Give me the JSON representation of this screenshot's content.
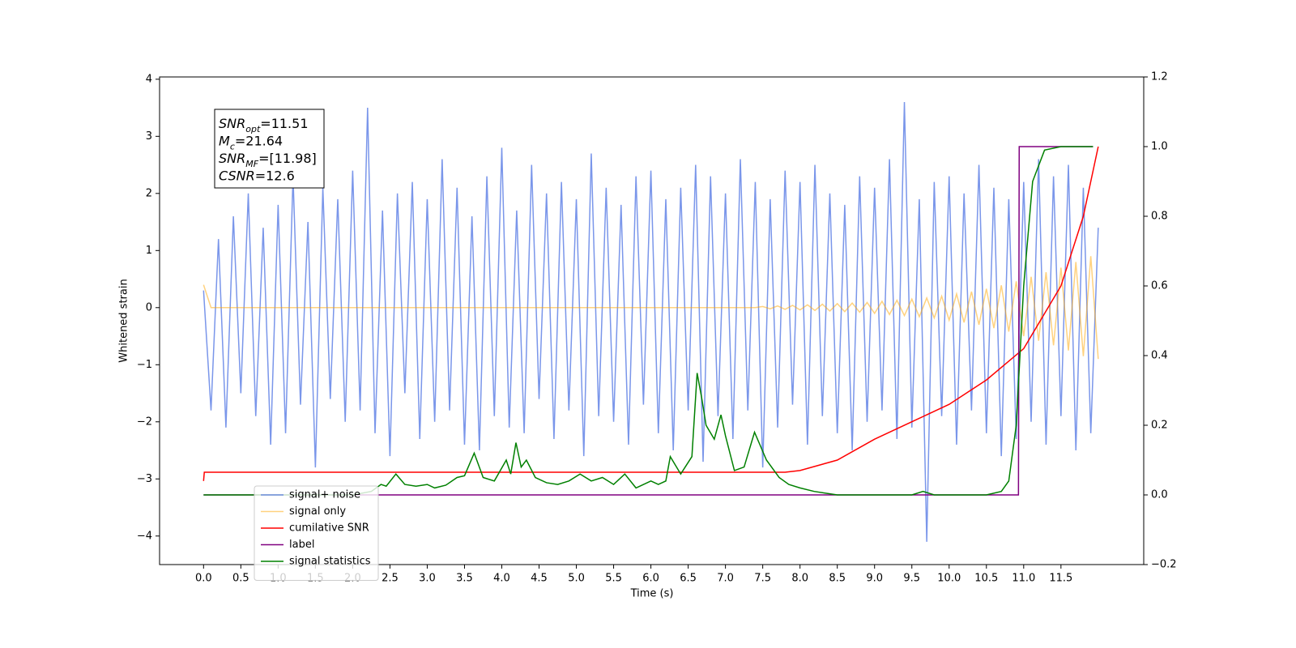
{
  "chart_data": {
    "type": "line",
    "xlabel": "Time (s)",
    "ylabel": "Whitened strain",
    "xlim": [
      -0.59,
      12.61
    ],
    "ylim": [
      -4.5,
      4.04
    ],
    "y2lim": [
      -0.2,
      1.2
    ],
    "xticks": [
      {
        "value": 0,
        "label": "0.0"
      },
      0.5,
      {
        "value": 1,
        "label": "1.0"
      },
      1.5,
      {
        "value": 2,
        "label": "2.0"
      },
      2.5,
      {
        "value": 3,
        "label": "3.0"
      },
      3.5,
      {
        "value": 4,
        "label": "4.0"
      },
      4.5,
      {
        "value": 5,
        "label": "5.0"
      },
      5.5,
      {
        "value": 6,
        "label": "6.0"
      },
      6.5,
      {
        "value": 7,
        "label": "7.0"
      },
      7.5,
      {
        "value": 8,
        "label": "8.0"
      },
      8.5,
      {
        "value": 9,
        "label": "9.0"
      },
      9.5,
      {
        "value": 10,
        "label": "10.0"
      },
      10.5,
      {
        "value": 11,
        "label": "11.0"
      },
      11.5
    ],
    "yticks": [
      {
        "value": -4,
        "label": "−4"
      },
      {
        "value": -3,
        "label": "−3"
      },
      {
        "value": -2,
        "label": "−2"
      },
      {
        "value": -1,
        "label": "−1"
      },
      0,
      1,
      2,
      3,
      4
    ],
    "y2ticks": [
      {
        "value": -0.2,
        "label": "−0.2"
      },
      {
        "value": 0,
        "label": "0.0"
      },
      0.2,
      0.4,
      0.6,
      0.8,
      {
        "value": 1,
        "label": "1.0"
      },
      1.2
    ],
    "legend": "lower left",
    "annotation": [
      {
        "main": "SNR",
        "sub": "opt",
        "rest": "=11.51"
      },
      {
        "main": "M",
        "sub": "c",
        "rest": "=21.64"
      },
      {
        "main": "SNR",
        "sub": "MF",
        "rest": "=[11.98]"
      },
      {
        "main": "CSNR",
        "sub": null,
        "rest": "=12.6"
      }
    ],
    "x": [
      0,
      0.1,
      0.2,
      0.3,
      0.4,
      0.5,
      0.6,
      0.7,
      0.8,
      0.9,
      1.0,
      1.1,
      1.2,
      1.3,
      1.4,
      1.5,
      1.6,
      1.7,
      1.8,
      1.9,
      2.0,
      2.1,
      2.2,
      2.3,
      2.4,
      2.5,
      2.6,
      2.7,
      2.8,
      2.9,
      3.0,
      3.1,
      3.2,
      3.3,
      3.4,
      3.5,
      3.6,
      3.7,
      3.8,
      3.9,
      4.0,
      4.1,
      4.2,
      4.3,
      4.4,
      4.5,
      4.6,
      4.7,
      4.8,
      4.9,
      5.0,
      5.1,
      5.2,
      5.3,
      5.4,
      5.5,
      5.6,
      5.7,
      5.8,
      5.9,
      6.0,
      6.1,
      6.2,
      6.3,
      6.4,
      6.5,
      6.6,
      6.7,
      6.8,
      6.9,
      7.0,
      7.1,
      7.2,
      7.3,
      7.4,
      7.5,
      7.6,
      7.7,
      7.8,
      7.9,
      8.0,
      8.1,
      8.2,
      8.3,
      8.4,
      8.5,
      8.6,
      8.7,
      8.8,
      8.9,
      9.0,
      9.1,
      9.2,
      9.3,
      9.4,
      9.5,
      9.6,
      9.7,
      9.8,
      9.9,
      10.0,
      10.1,
      10.2,
      10.3,
      10.4,
      10.5,
      10.6,
      10.7,
      10.8,
      10.9,
      11.0,
      11.1,
      11.2,
      11.3,
      11.4,
      11.5,
      11.6,
      11.7,
      11.8,
      11.9,
      12.0
    ],
    "series": [
      {
        "name": "signal+ noise",
        "color": "#4169e1",
        "alpha": 0.7,
        "values": [
          0.3,
          -1.8,
          1.2,
          -2.1,
          1.6,
          -1.5,
          2.0,
          -1.9,
          1.4,
          -2.4,
          1.8,
          -2.2,
          2.3,
          -1.7,
          1.5,
          -2.8,
          2.1,
          -1.6,
          1.9,
          -2.0,
          2.4,
          -1.8,
          3.5,
          -2.2,
          1.7,
          -2.6,
          2.0,
          -1.5,
          2.2,
          -2.3,
          1.9,
          -2.0,
          2.6,
          -1.8,
          2.1,
          -2.4,
          1.6,
          -2.5,
          2.3,
          -1.9,
          2.8,
          -2.1,
          1.7,
          -2.2,
          2.5,
          -1.6,
          2.0,
          -2.3,
          2.2,
          -1.8,
          1.9,
          -2.6,
          2.7,
          -1.9,
          2.1,
          -2.0,
          1.8,
          -2.4,
          2.3,
          -1.7,
          2.4,
          -2.2,
          1.9,
          -2.5,
          2.1,
          -1.8,
          2.5,
          -2.7,
          2.3,
          -1.9,
          2.0,
          -2.3,
          2.6,
          -1.8,
          2.2,
          -2.8,
          1.9,
          -2.1,
          2.4,
          -1.7,
          2.2,
          -2.4,
          2.5,
          -1.9,
          2.0,
          -2.2,
          1.8,
          -2.5,
          2.3,
          -2.0,
          2.1,
          -1.8,
          2.6,
          -2.3,
          3.6,
          -2.1,
          1.9,
          -4.1,
          2.2,
          -1.9,
          2.3,
          -2.4,
          2.0,
          -1.8,
          2.5,
          -2.2,
          2.1,
          -2.6,
          1.9,
          -2.3,
          2.2,
          -2.0,
          2.6,
          -2.4,
          2.3,
          -1.9,
          2.5,
          -2.5,
          2.1,
          -2.2,
          1.4
        ]
      },
      {
        "name": "signal only",
        "color": "#ffa500",
        "alpha": 0.5,
        "values": [
          0.4,
          0,
          0,
          0,
          0,
          0,
          0,
          0,
          0,
          0,
          0,
          0,
          0,
          0,
          0,
          0,
          0,
          0,
          0,
          0,
          0,
          0,
          0,
          0,
          0,
          0,
          0,
          0,
          0,
          0,
          0,
          0,
          0,
          0,
          0,
          0,
          0,
          0,
          0,
          0,
          0,
          0,
          0,
          0,
          0,
          0,
          0,
          0,
          0,
          0,
          0,
          0,
          0,
          0,
          0,
          0,
          0,
          0,
          0,
          0,
          0,
          0,
          0,
          0,
          0,
          0,
          0,
          0,
          0,
          0,
          0,
          0,
          0,
          0,
          0,
          0.02,
          -0.02,
          0.03,
          -0.03,
          0.04,
          -0.04,
          0.05,
          -0.05,
          0.06,
          -0.06,
          0.07,
          -0.07,
          0.08,
          -0.08,
          0.09,
          -0.1,
          0.11,
          -0.12,
          0.13,
          -0.14,
          0.15,
          -0.16,
          0.17,
          -0.18,
          0.2,
          -0.22,
          0.24,
          -0.26,
          0.28,
          -0.3,
          0.33,
          -0.36,
          0.39,
          -0.42,
          0.46,
          -0.5,
          0.54,
          -0.58,
          0.62,
          -0.66,
          0.7,
          -0.75,
          0.8,
          -0.85,
          0.9,
          -0.9
        ]
      },
      {
        "name": "cumilative SNR",
        "color": "#ff0000",
        "axis": "y2",
        "x": [
          0,
          0.01,
          1,
          2,
          3,
          4,
          5,
          6,
          7,
          7.8,
          8.0,
          8.5,
          9.0,
          9.5,
          10.0,
          10.5,
          11.0,
          11.5,
          11.8,
          12.0
        ],
        "values": [
          0.04,
          0.065,
          0.065,
          0.065,
          0.065,
          0.065,
          0.065,
          0.065,
          0.065,
          0.065,
          0.07,
          0.1,
          0.16,
          0.21,
          0.26,
          0.33,
          0.42,
          0.6,
          0.8,
          1.0
        ]
      },
      {
        "name": "label",
        "color": "#800080",
        "axis": "y2",
        "x": [
          0,
          10.93,
          10.94,
          11.93
        ],
        "values": [
          0,
          0,
          1,
          1
        ]
      },
      {
        "name": "signal statistics",
        "color": "#008000",
        "axis": "y2",
        "x": [
          0,
          2.0,
          2.25,
          2.38,
          2.45,
          2.58,
          2.7,
          2.85,
          3.0,
          3.1,
          3.25,
          3.4,
          3.5,
          3.63,
          3.75,
          3.9,
          4.06,
          4.12,
          4.19,
          4.26,
          4.33,
          4.45,
          4.6,
          4.75,
          4.9,
          5.05,
          5.2,
          5.35,
          5.5,
          5.65,
          5.8,
          6.0,
          6.1,
          6.2,
          6.26,
          6.4,
          6.55,
          6.62,
          6.68,
          6.74,
          6.85,
          6.94,
          7.0,
          7.12,
          7.25,
          7.39,
          7.45,
          7.55,
          7.72,
          7.85,
          8.0,
          8.19,
          8.5,
          9.5,
          9.65,
          9.8,
          10.5,
          10.7,
          10.8,
          10.9,
          11.0,
          11.12,
          11.28,
          11.5,
          11.93
        ],
        "values": [
          0,
          0,
          0.01,
          0.03,
          0.025,
          0.06,
          0.03,
          0.025,
          0.03,
          0.02,
          0.028,
          0.05,
          0.055,
          0.12,
          0.05,
          0.04,
          0.1,
          0.06,
          0.15,
          0.08,
          0.1,
          0.05,
          0.035,
          0.03,
          0.04,
          0.06,
          0.04,
          0.05,
          0.03,
          0.06,
          0.02,
          0.04,
          0.03,
          0.04,
          0.11,
          0.06,
          0.11,
          0.35,
          0.28,
          0.2,
          0.16,
          0.23,
          0.17,
          0.07,
          0.08,
          0.18,
          0.15,
          0.1,
          0.05,
          0.03,
          0.02,
          0.01,
          0,
          0,
          0.01,
          0,
          0,
          0.01,
          0.04,
          0.2,
          0.6,
          0.9,
          0.99,
          1.0,
          1.0
        ]
      }
    ]
  }
}
